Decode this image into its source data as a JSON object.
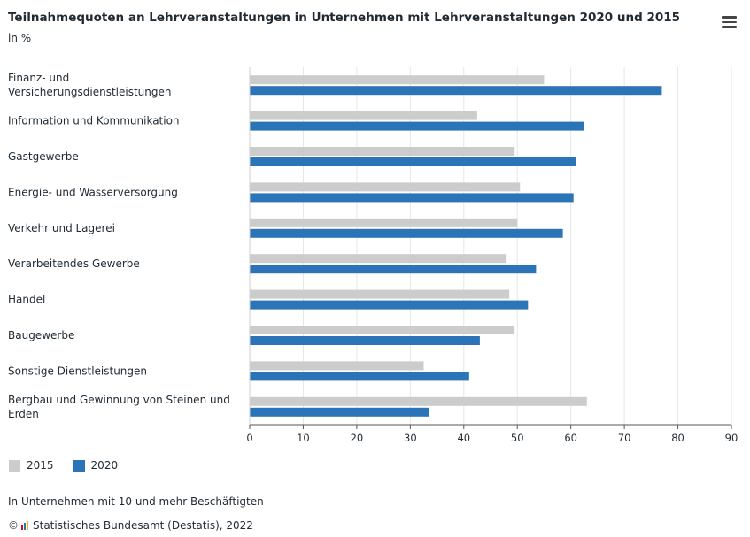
{
  "header": {
    "title": "Teilnahmequoten an Lehrveranstaltungen in Unternehmen mit Lehrveranstaltungen 2020 und 2015",
    "subtitle": "in %",
    "menu_icon": "hamburger-menu-icon"
  },
  "chart_data": {
    "type": "bar",
    "orientation": "horizontal",
    "title": "Teilnahmequoten an Lehrveranstaltungen in Unternehmen mit Lehrveranstaltungen 2020 und 2015",
    "subtitle": "in %",
    "xlim": [
      0,
      90
    ],
    "xticks": [
      0,
      10,
      20,
      30,
      40,
      50,
      60,
      70,
      80,
      90
    ],
    "grid": true,
    "legend_position": "bottom-left",
    "categories": [
      "Finanz- und Versicherungsdienstleistungen",
      "Information und Kommunikation",
      "Gastgewerbe",
      "Energie- und Wasserversorgung",
      "Verkehr und Lagerei",
      "Verarbeitendes Gewerbe",
      "Handel",
      "Baugewerbe",
      "Sonstige Dienstleistungen",
      "Bergbau und Gewinnung von Steinen und Erden"
    ],
    "series": [
      {
        "name": "2015",
        "color": "#cccccc",
        "values": [
          55,
          42.5,
          49.5,
          50.5,
          50,
          48,
          48.5,
          49.5,
          32.5,
          63
        ]
      },
      {
        "name": "2020",
        "color": "#2a74b7",
        "values": [
          77,
          62.5,
          61,
          60.5,
          58.5,
          53.5,
          52,
          43,
          41,
          33.5
        ]
      }
    ]
  },
  "legend": [
    {
      "label": "2015",
      "color": "#cccccc"
    },
    {
      "label": "2020",
      "color": "#2a74b7"
    }
  ],
  "footer": {
    "note": "In Unternehmen mit 10 und mehr Beschäftigten",
    "copyright_symbol": "©",
    "source": "Statistisches Bundesamt (Destatis), 2022"
  }
}
